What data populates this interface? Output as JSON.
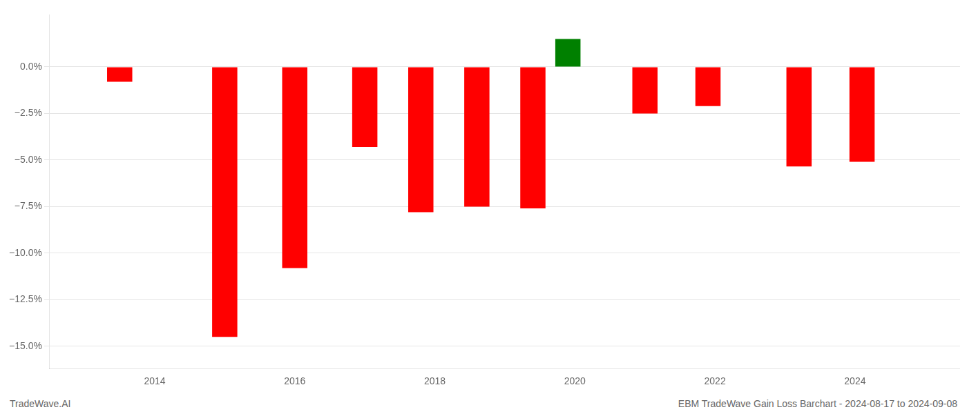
{
  "chart_data": {
    "type": "bar",
    "x": [
      2013.5,
      2015.0,
      2016.0,
      2017.0,
      2017.8,
      2018.6,
      2019.4,
      2019.9,
      2021.0,
      2021.9,
      2023.2,
      2024.1
    ],
    "values": [
      -0.8,
      -14.5,
      -10.8,
      -4.3,
      -7.8,
      -7.5,
      -7.6,
      1.5,
      -2.5,
      -2.1,
      -5.35,
      -5.1
    ],
    "colors": [
      "#ff0000",
      "#ff0000",
      "#ff0000",
      "#ff0000",
      "#ff0000",
      "#ff0000",
      "#ff0000",
      "#008000",
      "#ff0000",
      "#ff0000",
      "#ff0000",
      "#ff0000"
    ],
    "xlim": [
      2012.5,
      2025.5
    ],
    "xticks": [
      2014,
      2016,
      2018,
      2020,
      2022,
      2024
    ],
    "ylim": [
      -16.2,
      2.8
    ],
    "yticks": [
      {
        "value": 0.0,
        "label": "0.0%"
      },
      {
        "value": -2.5,
        "label": "−2.5%"
      },
      {
        "value": -5.0,
        "label": "−5.0%"
      },
      {
        "value": -7.5,
        "label": "−7.5%"
      },
      {
        "value": -10.0,
        "label": "−10.0%"
      },
      {
        "value": -12.5,
        "label": "−12.5%"
      },
      {
        "value": -15.0,
        "label": "−15.0%"
      }
    ],
    "grid": "y",
    "annotations": [
      "TradeWave.AI",
      "EBM TradeWave Gain Loss Barchart - 2024-08-17 to 2024-09-08"
    ]
  }
}
